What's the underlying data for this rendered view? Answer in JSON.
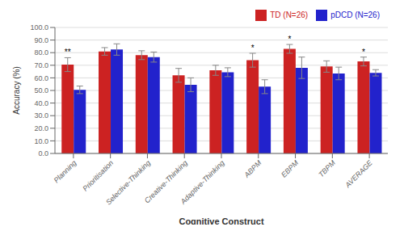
{
  "chart_data": {
    "type": "bar",
    "xlabel": "Cognitive Construct",
    "ylabel": "Accuracy (%)",
    "categories": [
      "Planning",
      "Prioritisation",
      "Selective-Thinking",
      "Creative-Thinking",
      "Adaptive-Thinking",
      "ABPM",
      "EBPM",
      "TBPM",
      "AVERAGE"
    ],
    "series": [
      {
        "name": "TD (N=26)",
        "color": "#CC2222",
        "values": [
          70.5,
          81.0,
          78.0,
          62.0,
          66.0,
          74.0,
          83.0,
          69.0,
          73.0
        ],
        "errors": [
          5.5,
          3.0,
          3.5,
          5.5,
          4.0,
          5.5,
          3.5,
          4.5,
          3.5
        ]
      },
      {
        "name": "pDCD (N=26)",
        "color": "#2222CC",
        "values": [
          50.5,
          82.5,
          76.5,
          54.5,
          64.5,
          53.0,
          68.0,
          63.5,
          64.0
        ],
        "errors": [
          3.0,
          4.5,
          4.0,
          5.5,
          3.5,
          5.5,
          8.5,
          5.0,
          2.5
        ]
      }
    ],
    "annotations": [
      {
        "category": "Planning",
        "series": "TD (N=26)",
        "text": "**"
      },
      {
        "category": "ABPM",
        "series": "TD (N=26)",
        "text": "*"
      },
      {
        "category": "EBPM",
        "series": "TD (N=26)",
        "text": "*"
      },
      {
        "category": "AVERAGE",
        "series": "TD (N=26)",
        "text": "*"
      }
    ],
    "ylim": [
      0.0,
      100.0
    ],
    "yticks": [
      {
        "value": 0.0,
        "label": "0.0"
      },
      {
        "value": 10.0,
        "label": "10.0"
      },
      {
        "value": 20.0,
        "label": "20.0"
      },
      {
        "value": 30.0,
        "label": "30.0"
      },
      {
        "value": 40.0,
        "label": "40.0"
      },
      {
        "value": 50.0,
        "label": "50.0"
      },
      {
        "value": 60.0,
        "label": "60.0"
      },
      {
        "value": 70.0,
        "label": "70.0"
      },
      {
        "value": 80.0,
        "label": "80.0"
      },
      {
        "value": 90.0,
        "label": "90.0"
      },
      {
        "value": 100.0,
        "label": "100.0"
      }
    ],
    "grid": true,
    "legend": "upper right"
  }
}
